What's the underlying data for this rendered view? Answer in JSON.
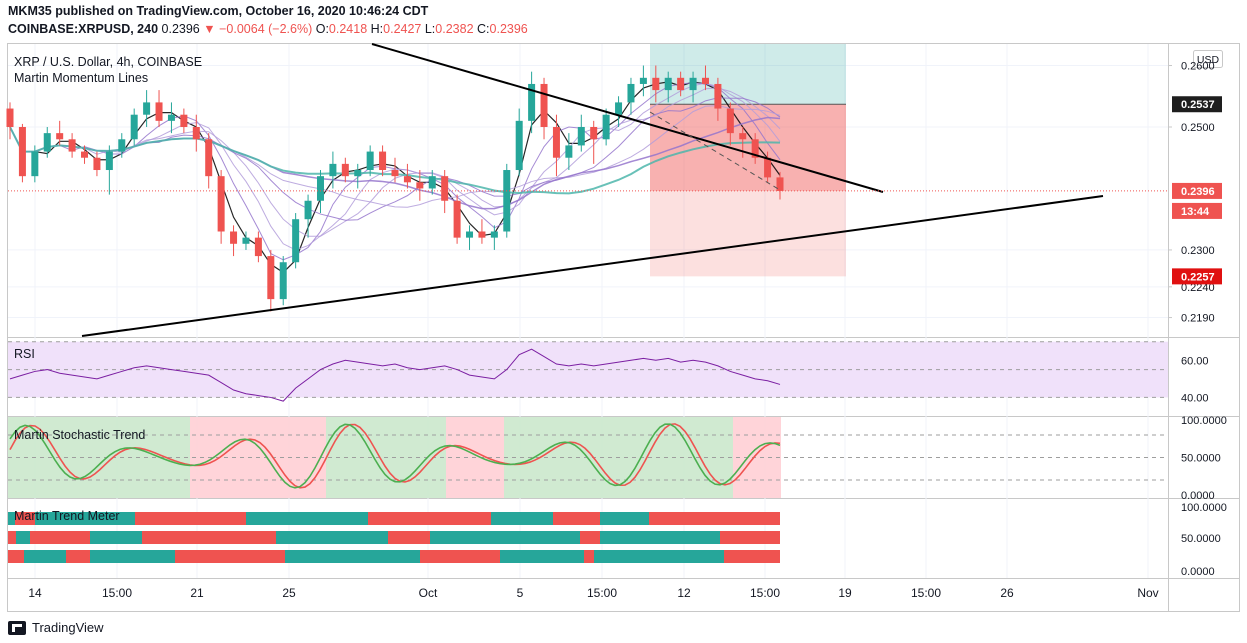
{
  "header": {
    "publisher": "MKM35 published on TradingView.com, October 16, 2020 10:46:24 CDT",
    "symbol": "COINBASE:XRPUSD, 240",
    "last": "0.2396",
    "change": "−0.0064 (−2.6%)",
    "o_label": "O:",
    "o": "0.2418",
    "h_label": "H:",
    "h": "0.2427",
    "l_label": "L:",
    "l": "0.2382",
    "c_label": "C:",
    "c": "0.2396"
  },
  "footer": {
    "brand": "TradingView"
  },
  "colors": {
    "up": "#26a69a",
    "down": "#ef5350",
    "rsi_line": "#7b1fa2",
    "rsi_band": "#f0e1fa",
    "stoch_fast": "#4caf50",
    "stoch_slow": "#ef5350",
    "teal": "#26a69a",
    "ema_teal": "#4db6ac",
    "ema_purple": "#9575cd"
  },
  "chart_data": {
    "type": "candlestick",
    "title": "XRP / U.S. Dollar, 4h, COINBASE",
    "indicator": "Martin Momentum Lines",
    "currency": "USD",
    "y_ticks": [
      "0.2600",
      "0.2500",
      "0.2300",
      "0.2240",
      "0.2190"
    ],
    "price_labels": [
      {
        "value": "0.2537",
        "kind": "target"
      },
      {
        "value": "0.2396",
        "kind": "last"
      },
      {
        "value": "13:44",
        "kind": "countdown"
      },
      {
        "value": "0.2257",
        "kind": "stop"
      }
    ],
    "x_ticks": [
      "14",
      "15:00",
      "21",
      "25",
      "Oct",
      "5",
      "15:00",
      "12",
      "15:00",
      "19",
      "15:00",
      "26",
      "Nov"
    ],
    "ylim": [
      0.216,
      0.2635
    ],
    "candles": [
      [
        0.253,
        0.254,
        0.248,
        0.25
      ],
      [
        0.25,
        0.2505,
        0.241,
        0.242
      ],
      [
        0.242,
        0.247,
        0.241,
        0.246
      ],
      [
        0.246,
        0.25,
        0.245,
        0.249
      ],
      [
        0.249,
        0.251,
        0.247,
        0.248
      ],
      [
        0.248,
        0.249,
        0.245,
        0.246
      ],
      [
        0.246,
        0.247,
        0.244,
        0.245
      ],
      [
        0.245,
        0.246,
        0.242,
        0.243
      ],
      [
        0.243,
        0.247,
        0.239,
        0.246
      ],
      [
        0.246,
        0.249,
        0.245,
        0.248
      ],
      [
        0.248,
        0.253,
        0.247,
        0.252
      ],
      [
        0.252,
        0.256,
        0.25,
        0.254
      ],
      [
        0.254,
        0.256,
        0.25,
        0.251
      ],
      [
        0.251,
        0.254,
        0.249,
        0.252
      ],
      [
        0.252,
        0.253,
        0.249,
        0.25
      ],
      [
        0.25,
        0.252,
        0.246,
        0.248
      ],
      [
        0.248,
        0.249,
        0.24,
        0.242
      ],
      [
        0.242,
        0.243,
        0.231,
        0.233
      ],
      [
        0.233,
        0.234,
        0.229,
        0.231
      ],
      [
        0.231,
        0.233,
        0.23,
        0.232
      ],
      [
        0.232,
        0.233,
        0.228,
        0.229
      ],
      [
        0.229,
        0.23,
        0.22,
        0.222
      ],
      [
        0.222,
        0.229,
        0.221,
        0.228
      ],
      [
        0.228,
        0.236,
        0.227,
        0.235
      ],
      [
        0.235,
        0.239,
        0.232,
        0.238
      ],
      [
        0.238,
        0.243,
        0.236,
        0.242
      ],
      [
        0.242,
        0.246,
        0.24,
        0.244
      ],
      [
        0.244,
        0.245,
        0.241,
        0.242
      ],
      [
        0.242,
        0.244,
        0.24,
        0.243
      ],
      [
        0.243,
        0.247,
        0.242,
        0.246
      ],
      [
        0.246,
        0.247,
        0.242,
        0.243
      ],
      [
        0.243,
        0.245,
        0.241,
        0.242
      ],
      [
        0.242,
        0.244,
        0.24,
        0.241
      ],
      [
        0.241,
        0.243,
        0.238,
        0.24
      ],
      [
        0.24,
        0.243,
        0.239,
        0.242
      ],
      [
        0.242,
        0.243,
        0.236,
        0.238
      ],
      [
        0.238,
        0.239,
        0.231,
        0.232
      ],
      [
        0.232,
        0.234,
        0.23,
        0.233
      ],
      [
        0.233,
        0.235,
        0.231,
        0.232
      ],
      [
        0.232,
        0.234,
        0.23,
        0.233
      ],
      [
        0.233,
        0.244,
        0.232,
        0.243
      ],
      [
        0.243,
        0.253,
        0.242,
        0.251
      ],
      [
        0.251,
        0.259,
        0.249,
        0.257
      ],
      [
        0.257,
        0.258,
        0.248,
        0.25
      ],
      [
        0.25,
        0.252,
        0.242,
        0.245
      ],
      [
        0.245,
        0.249,
        0.243,
        0.247
      ],
      [
        0.247,
        0.252,
        0.246,
        0.25
      ],
      [
        0.25,
        0.251,
        0.244,
        0.248
      ],
      [
        0.248,
        0.253,
        0.247,
        0.252
      ],
      [
        0.252,
        0.255,
        0.25,
        0.254
      ],
      [
        0.254,
        0.258,
        0.252,
        0.257
      ],
      [
        0.257,
        0.26,
        0.255,
        0.258
      ],
      [
        0.258,
        0.26,
        0.254,
        0.256
      ],
      [
        0.256,
        0.259,
        0.254,
        0.258
      ],
      [
        0.258,
        0.259,
        0.255,
        0.256
      ],
      [
        0.256,
        0.259,
        0.254,
        0.258
      ],
      [
        0.258,
        0.26,
        0.256,
        0.257
      ],
      [
        0.257,
        0.258,
        0.251,
        0.253
      ],
      [
        0.253,
        0.254,
        0.247,
        0.249
      ],
      [
        0.249,
        0.25,
        0.245,
        0.248
      ],
      [
        0.248,
        0.249,
        0.244,
        0.245
      ],
      [
        0.245,
        0.246,
        0.241,
        0.2418
      ],
      [
        0.2418,
        0.2427,
        0.2382,
        0.2396
      ]
    ],
    "trade_box": {
      "entry": 0.2396,
      "target": 0.2537,
      "stop": 0.2257
    },
    "rsi": {
      "label": "RSI",
      "y_ticks": [
        "60.00",
        "40.00"
      ],
      "band": [
        40,
        70
      ],
      "values": [
        50,
        52,
        54,
        55,
        53,
        52,
        51,
        50,
        52,
        54,
        56,
        57,
        56,
        55,
        54,
        53,
        52,
        48,
        44,
        42,
        41,
        40,
        38,
        45,
        50,
        55,
        58,
        60,
        59,
        58,
        57,
        58,
        56,
        55,
        56,
        57,
        55,
        52,
        51,
        50,
        55,
        63,
        66,
        62,
        58,
        57,
        58,
        57,
        58,
        59,
        60,
        61,
        60,
        61,
        59,
        60,
        59,
        57,
        54,
        52,
        50,
        49,
        47
      ]
    },
    "stochastic": {
      "label": "Martin Stochastic Trend",
      "y_ticks": [
        "100.0000",
        "50.0000",
        "0.0000"
      ]
    },
    "trend_meter": {
      "label": "Martin Trend Meter",
      "y_ticks": [
        "100.0000",
        "50.0000",
        "0.0000"
      ]
    }
  }
}
